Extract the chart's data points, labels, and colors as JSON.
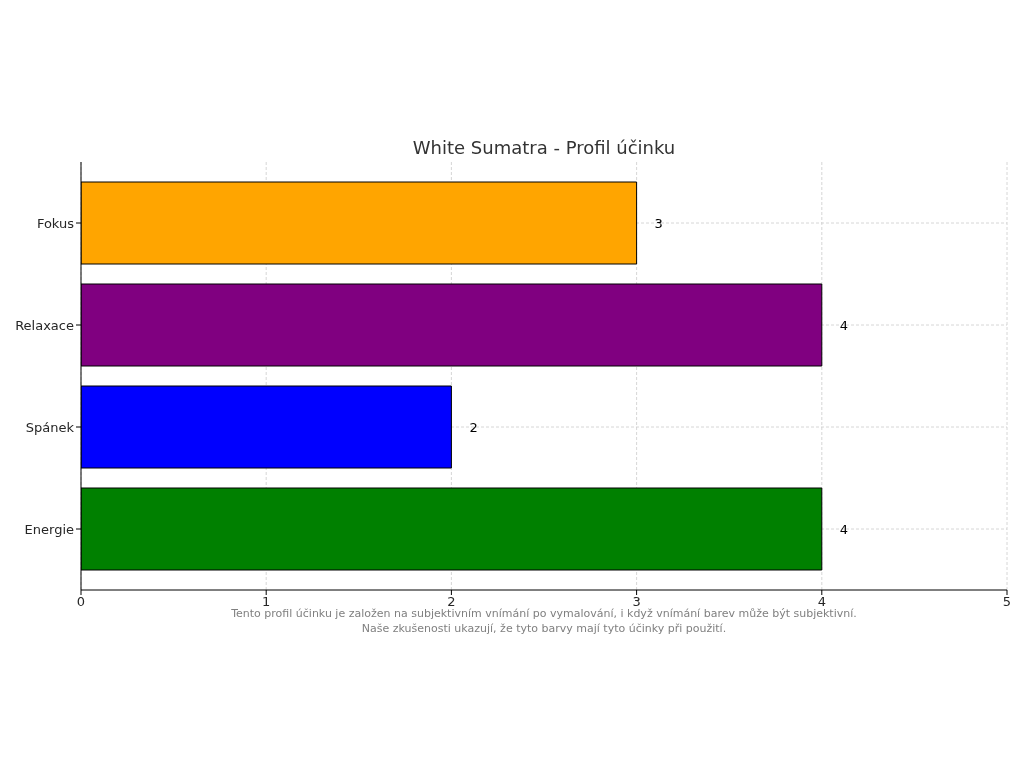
{
  "chart_data": {
    "type": "bar",
    "orientation": "horizontal",
    "title": "White Sumatra - Profil účinku",
    "categories": [
      "Fokus",
      "Relaxace",
      "Spánek",
      "Energie"
    ],
    "values": [
      3,
      4,
      2,
      4
    ],
    "colors": [
      "#ffa500",
      "#800080",
      "#0000ff",
      "#008000"
    ],
    "xlim": [
      0,
      5
    ],
    "xticks": [
      0,
      1,
      2,
      3,
      4,
      5
    ],
    "grid": true,
    "data_labels": true,
    "annotations": [
      "Tento profil účinku je založen na subjektivním vnímání po vymalování, i když vnímání barev může být subjektivní.",
      "Naše zkušenosti ukazují, že tyto barvy mají tyto účinky při použití."
    ]
  }
}
